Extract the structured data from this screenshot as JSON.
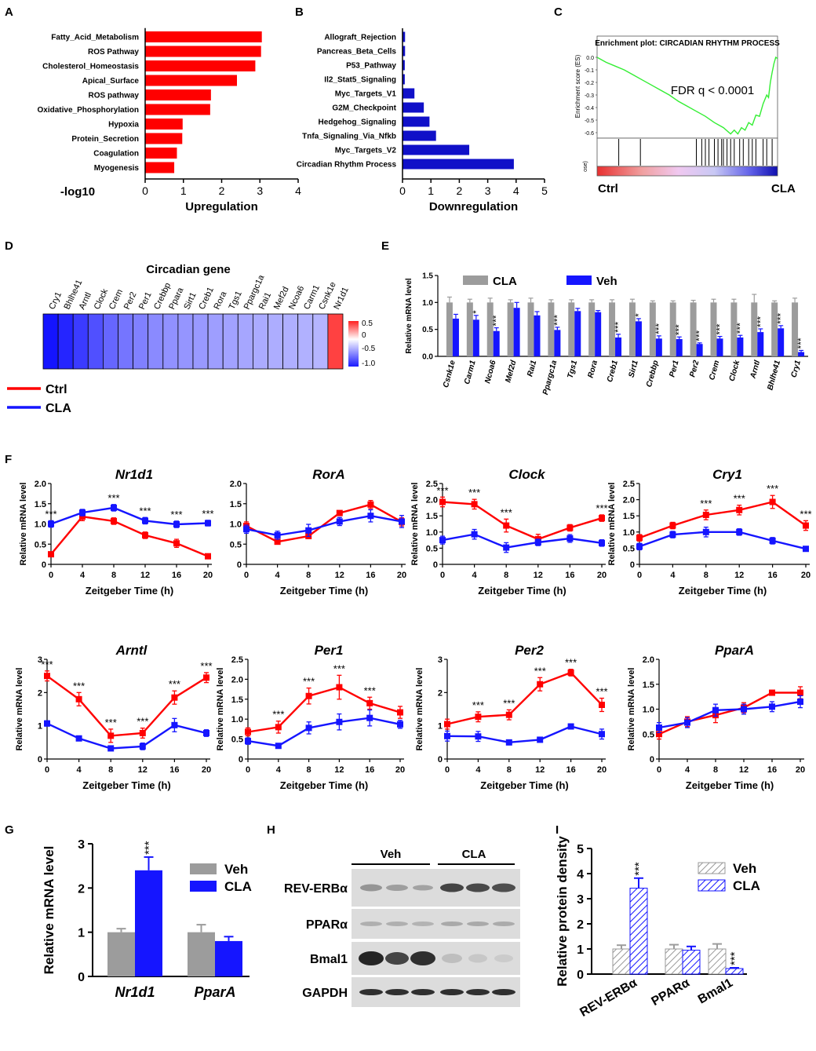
{
  "colors": {
    "red": "#ff0000",
    "darkblue": "#1010c8",
    "blue": "#1515ff",
    "gray": "#9c9c9c",
    "green": "#33ee33"
  },
  "chart_data": [
    {
      "panel": "A",
      "type": "bar",
      "orientation": "horizontal",
      "categories": [
        "Fatty_Acid_Metabolism",
        "ROS Pathway",
        "Cholesterol_Homeostasis",
        "Apical_Surface",
        "ROS pathway",
        "Oxidative_Phosphorylation",
        "Hypoxia",
        "Protein_Secretion",
        "Coagulation",
        "Myogenesis"
      ],
      "values": [
        3.05,
        3.03,
        2.88,
        2.4,
        1.72,
        1.7,
        0.98,
        0.97,
        0.83,
        0.76
      ],
      "xlim": [
        0,
        4
      ],
      "xticks": [
        "0",
        "1",
        "2",
        "3",
        "4"
      ],
      "xlabel": "Upregulation",
      "side_label": "-log10"
    },
    {
      "panel": "B",
      "type": "bar",
      "orientation": "horizontal",
      "categories": [
        "Allograft_Rejection",
        "Pancreas_Beta_Cells",
        "P53_Pathway",
        "Il2_Stat5_Signaling",
        "Myc_Targets_V1",
        "G2M_Checkpoint",
        "Hedgehog_Signaling",
        "Tnfa_Signaling_Via_Nfkb",
        "Myc_Targets_V2",
        "Circadian Rhythm Process"
      ],
      "values": [
        0.09,
        0.09,
        0.08,
        0.08,
        0.42,
        0.75,
        0.95,
        1.18,
        2.35,
        3.92
      ],
      "xlim": [
        0,
        5
      ],
      "xticks": [
        "0",
        "1",
        "2",
        "3",
        "4",
        "5"
      ],
      "xlabel": "Downregulation"
    },
    {
      "panel": "C",
      "type": "line",
      "title": "Enrichment plot: CIRCADIAN RHYTHM PROCESS",
      "ylabel": "Enrichment score (ES)",
      "yticks": [
        "0.0",
        "-0.1",
        "-0.2",
        "-0.3",
        "-0.4",
        "-0.5",
        "-0.6"
      ],
      "annotation": "FDR q < 0.0001",
      "left_label": "Ctrl",
      "right_label": "CLA",
      "rank_label": "ose)"
    },
    {
      "panel": "D",
      "type": "heatmap",
      "title": "Circadian gene",
      "genes": [
        "Cry1",
        "Bhlhe41",
        "Arntl",
        "Clock",
        "Crem",
        "Per2",
        "Per1",
        "Crebbp",
        "Ppara",
        "Sirt1",
        "Creb1",
        "Rora",
        "Tgs1",
        "Ppargc1a",
        "Rai1",
        "Mef2d",
        "Ncoa6",
        "Carm1",
        "Csnk1e",
        "Nr1d1"
      ],
      "values": [
        -1.0,
        -0.92,
        -0.82,
        -0.72,
        -0.62,
        -0.55,
        -0.5,
        -0.45,
        -0.42,
        -0.4,
        -0.38,
        -0.36,
        -0.34,
        -0.32,
        -0.3,
        -0.29,
        -0.28,
        -0.27,
        -0.25,
        0.9
      ],
      "legend_ticks": [
        "0.5",
        "0",
        "-0.5",
        "-1.0"
      ],
      "groups": [
        "Ctrl",
        "CLA"
      ]
    },
    {
      "panel": "E",
      "type": "bar",
      "ylabel": "Relative mRNA level",
      "legend": [
        "CLA",
        "Veh"
      ],
      "categories": [
        "Csnk1e",
        "Carm1",
        "Ncoa6",
        "Mef2d",
        "Rai1",
        "Ppargc1a",
        "Tgs1",
        "Rora",
        "Creb1",
        "Sirt1",
        "Crebbp",
        "Per1",
        "Per2",
        "Crem",
        "Clock",
        "Arntl",
        "Bhlhe41",
        "Cry1"
      ],
      "gray": [
        1.0,
        1.0,
        1.0,
        1.0,
        1.0,
        1.0,
        1.0,
        1.0,
        1.0,
        1.0,
        1.0,
        1.0,
        1.0,
        1.0,
        1.0,
        1.0,
        1.0,
        1.0
      ],
      "gray_err": [
        0.1,
        0.06,
        0.08,
        0.05,
        0.08,
        0.05,
        0.05,
        0.05,
        0.05,
        0.06,
        0.03,
        0.03,
        0.04,
        0.06,
        0.06,
        0.15,
        0.03,
        0.08
      ],
      "blue": [
        0.7,
        0.68,
        0.47,
        0.9,
        0.76,
        0.49,
        0.84,
        0.82,
        0.35,
        0.65,
        0.33,
        0.32,
        0.23,
        0.33,
        0.35,
        0.45,
        0.52,
        0.08
      ],
      "blue_err": [
        0.08,
        0.08,
        0.06,
        0.1,
        0.07,
        0.05,
        0.05,
        0.03,
        0.06,
        0.05,
        0.05,
        0.04,
        0.02,
        0.04,
        0.04,
        0.06,
        0.05,
        0.03
      ],
      "sig": [
        "",
        "*",
        "***",
        "",
        "",
        "***",
        "",
        "",
        "***",
        "*",
        "***",
        "***",
        "***",
        "***",
        "***",
        "***",
        "***",
        "***"
      ],
      "ylim": [
        0,
        1.5
      ],
      "yticks": [
        "0.0",
        "0.5",
        "1.0",
        "1.5"
      ]
    },
    {
      "panel": "F",
      "type": "line",
      "title": "Nr1d1",
      "xlabel": "Zeitgeber Time (h)",
      "ylabel": "Relative mRNA level",
      "x": [
        0,
        4,
        8,
        12,
        16,
        20
      ],
      "ylim": [
        0,
        2.0
      ],
      "yticks": [
        "0",
        "0.5",
        "1.0",
        "1.5",
        "2.0"
      ],
      "series": [
        {
          "name": "Ctrl",
          "values": [
            0.25,
            1.18,
            1.07,
            0.72,
            0.52,
            0.2
          ],
          "err": [
            0.04,
            0.1,
            0.08,
            0.08,
            0.1,
            0.03
          ]
        },
        {
          "name": "CLA",
          "values": [
            1.0,
            1.28,
            1.4,
            1.08,
            0.99,
            1.02
          ],
          "err": [
            0.08,
            0.08,
            0.08,
            0.08,
            0.08,
            0.07
          ]
        }
      ],
      "sig": [
        "***",
        "",
        "***",
        "***",
        "***",
        "***"
      ]
    },
    {
      "panel": "F",
      "type": "line",
      "title": "RorA",
      "xlabel": "Zeitgeber Time (h)",
      "ylabel": "",
      "x": [
        0,
        4,
        8,
        12,
        16,
        20
      ],
      "ylim": [
        0,
        2.0
      ],
      "yticks": [
        "0",
        "0.5",
        "1.0",
        "1.5",
        "2.0"
      ],
      "series": [
        {
          "name": "Ctrl",
          "values": [
            0.95,
            0.56,
            0.7,
            1.27,
            1.48,
            1.05
          ],
          "err": [
            0.1,
            0.06,
            0.06,
            0.05,
            0.1,
            0.1
          ]
        },
        {
          "name": "CLA",
          "values": [
            0.87,
            0.72,
            0.84,
            1.06,
            1.2,
            1.06
          ],
          "err": [
            0.1,
            0.1,
            0.15,
            0.1,
            0.15,
            0.15
          ]
        }
      ],
      "sig": [
        "",
        "",
        "",
        "",
        "",
        ""
      ]
    },
    {
      "panel": "F",
      "type": "line",
      "title": "Clock",
      "xlabel": "Zeitgeber Time (h)",
      "ylabel": "Relative mRNA level",
      "x": [
        0,
        4,
        8,
        12,
        16,
        20
      ],
      "ylim": [
        0,
        2.5
      ],
      "yticks": [
        "0",
        "0.5",
        "1.0",
        "1.5",
        "2.0",
        "2.5"
      ],
      "series": [
        {
          "name": "Ctrl",
          "values": [
            1.93,
            1.86,
            1.2,
            0.78,
            1.13,
            1.43
          ],
          "err": [
            0.15,
            0.15,
            0.2,
            0.15,
            0.1,
            0.1
          ]
        },
        {
          "name": "CLA",
          "values": [
            0.75,
            0.93,
            0.52,
            0.68,
            0.8,
            0.66
          ],
          "err": [
            0.12,
            0.15,
            0.15,
            0.1,
            0.12,
            0.1
          ]
        }
      ],
      "sig": [
        "***",
        "***",
        "***",
        "",
        "",
        "***"
      ]
    },
    {
      "panel": "F",
      "type": "line",
      "title": "Cry1",
      "xlabel": "Zeitgeber Time (h)",
      "ylabel": "Relative mRNA level",
      "x": [
        0,
        4,
        8,
        12,
        16,
        20
      ],
      "ylim": [
        0,
        2.5
      ],
      "yticks": [
        "0",
        "0.5",
        "1.0",
        "1.5",
        "2.0",
        "2.5"
      ],
      "series": [
        {
          "name": "Ctrl",
          "values": [
            0.82,
            1.2,
            1.53,
            1.68,
            1.93,
            1.2
          ],
          "err": [
            0.1,
            0.1,
            0.15,
            0.15,
            0.2,
            0.15
          ]
        },
        {
          "name": "CLA",
          "values": [
            0.55,
            0.92,
            1.0,
            1.0,
            0.73,
            0.48
          ],
          "err": [
            0.1,
            0.1,
            0.15,
            0.1,
            0.1,
            0.05
          ]
        }
      ],
      "sig": [
        "",
        "",
        "***",
        "***",
        "***",
        "***"
      ]
    },
    {
      "panel": "F",
      "type": "line",
      "title": "Arntl",
      "xlabel": "Zeitgeber Time (h)",
      "ylabel": "Relative mRNA level",
      "x": [
        0,
        4,
        8,
        12,
        16,
        20
      ],
      "ylim": [
        0,
        3
      ],
      "yticks": [
        "0",
        "1",
        "2",
        "3"
      ],
      "series": [
        {
          "name": "Ctrl",
          "values": [
            2.5,
            1.8,
            0.7,
            0.78,
            1.85,
            2.45
          ],
          "err": [
            0.15,
            0.2,
            0.2,
            0.15,
            0.2,
            0.15
          ]
        },
        {
          "name": "CLA",
          "values": [
            1.07,
            0.62,
            0.32,
            0.38,
            1.02,
            0.78
          ],
          "err": [
            0.08,
            0.05,
            0.05,
            0.1,
            0.2,
            0.1
          ]
        }
      ],
      "sig": [
        "***",
        "***",
        "***",
        "***",
        "***",
        "***"
      ]
    },
    {
      "panel": "F",
      "type": "line",
      "title": "Per1",
      "xlabel": "Zeitgeber Time (h)",
      "ylabel": "Relative mRNA level",
      "x": [
        0,
        4,
        8,
        12,
        16,
        20
      ],
      "ylim": [
        0,
        2.5
      ],
      "yticks": [
        "0",
        "0.5",
        "1.0",
        "1.5",
        "2.0",
        "2.5"
      ],
      "series": [
        {
          "name": "Ctrl",
          "values": [
            0.68,
            0.8,
            1.58,
            1.8,
            1.4,
            1.17
          ],
          "err": [
            0.1,
            0.15,
            0.2,
            0.3,
            0.15,
            0.15
          ]
        },
        {
          "name": "CLA",
          "values": [
            0.45,
            0.33,
            0.78,
            0.93,
            1.03,
            0.87
          ],
          "err": [
            0.08,
            0.05,
            0.15,
            0.2,
            0.2,
            0.1
          ]
        }
      ],
      "sig": [
        "",
        "***",
        "***",
        "***",
        "***",
        ""
      ]
    },
    {
      "panel": "F",
      "type": "line",
      "title": "Per2",
      "xlabel": "Zeitgeber Time (h)",
      "ylabel": "Relative mRNA level",
      "x": [
        0,
        4,
        8,
        12,
        16,
        20
      ],
      "ylim": [
        0,
        3
      ],
      "yticks": [
        "0",
        "1",
        "2",
        "3"
      ],
      "series": [
        {
          "name": "Ctrl",
          "values": [
            1.05,
            1.27,
            1.33,
            2.25,
            2.6,
            1.63
          ],
          "err": [
            0.15,
            0.15,
            0.15,
            0.2,
            0.1,
            0.2
          ]
        },
        {
          "name": "CLA",
          "values": [
            0.69,
            0.68,
            0.5,
            0.58,
            0.98,
            0.75
          ],
          "err": [
            0.15,
            0.15,
            0.05,
            0.05,
            0.05,
            0.15
          ]
        }
      ],
      "sig": [
        "",
        "***",
        "***",
        "***",
        "***",
        "***"
      ]
    },
    {
      "panel": "F",
      "type": "line",
      "title": "PparA",
      "xlabel": "Zeitgeber Time (h)",
      "ylabel": "Relative mRNA level",
      "x": [
        0,
        4,
        8,
        12,
        16,
        20
      ],
      "ylim": [
        0,
        2.0
      ],
      "yticks": [
        "0",
        "0.5",
        "1.0",
        "1.5",
        "2.0"
      ],
      "series": [
        {
          "name": "Ctrl",
          "values": [
            0.5,
            0.75,
            0.88,
            1.03,
            1.33,
            1.33
          ],
          "err": [
            0.1,
            0.1,
            0.15,
            0.1,
            0.03,
            0.12
          ]
        },
        {
          "name": "CLA",
          "values": [
            0.63,
            0.73,
            0.98,
            1.0,
            1.05,
            1.15
          ],
          "err": [
            0.1,
            0.1,
            0.12,
            0.1,
            0.1,
            0.12
          ]
        }
      ],
      "sig": [
        "",
        "",
        "",
        "",
        "",
        ""
      ]
    },
    {
      "panel": "G",
      "type": "bar",
      "ylabel": "Relative mRNA level",
      "categories": [
        "Nr1d1",
        "PparA"
      ],
      "series": [
        {
          "name": "Veh",
          "values": [
            1.0,
            1.0
          ],
          "err": [
            0.08,
            0.17
          ]
        },
        {
          "name": "CLA",
          "values": [
            2.4,
            0.8
          ],
          "err": [
            0.3,
            0.1
          ]
        }
      ],
      "sig": [
        "***",
        ""
      ],
      "ylim": [
        0,
        3
      ],
      "yticks": [
        "0",
        "1",
        "2",
        "3"
      ]
    },
    {
      "panel": "I",
      "type": "bar",
      "ylabel": "Relative protein density",
      "categories": [
        "REV-ERBα",
        "PPARα",
        "Bmal1"
      ],
      "series": [
        {
          "name": "Veh",
          "values": [
            1.0,
            1.0,
            1.0
          ],
          "err": [
            0.15,
            0.17,
            0.2
          ]
        },
        {
          "name": "CLA",
          "values": [
            3.42,
            0.95,
            0.22
          ],
          "err": [
            0.4,
            0.15,
            0.03
          ]
        }
      ],
      "sig": [
        "***",
        "",
        "***"
      ],
      "ylim": [
        0,
        5
      ],
      "yticks": [
        "0",
        "1",
        "2",
        "3",
        "4",
        "5"
      ]
    }
  ],
  "blot": {
    "panel": "H",
    "groups": [
      "Veh",
      "CLA"
    ],
    "rows": [
      "REV-ERBα",
      "PPARα",
      "Bmal1",
      "GAPDH"
    ]
  },
  "panel_labels": {
    "A": "A",
    "B": "B",
    "C": "C",
    "D": "D",
    "E": "E",
    "F": "F",
    "G": "G",
    "H": "H",
    "I": "I"
  }
}
